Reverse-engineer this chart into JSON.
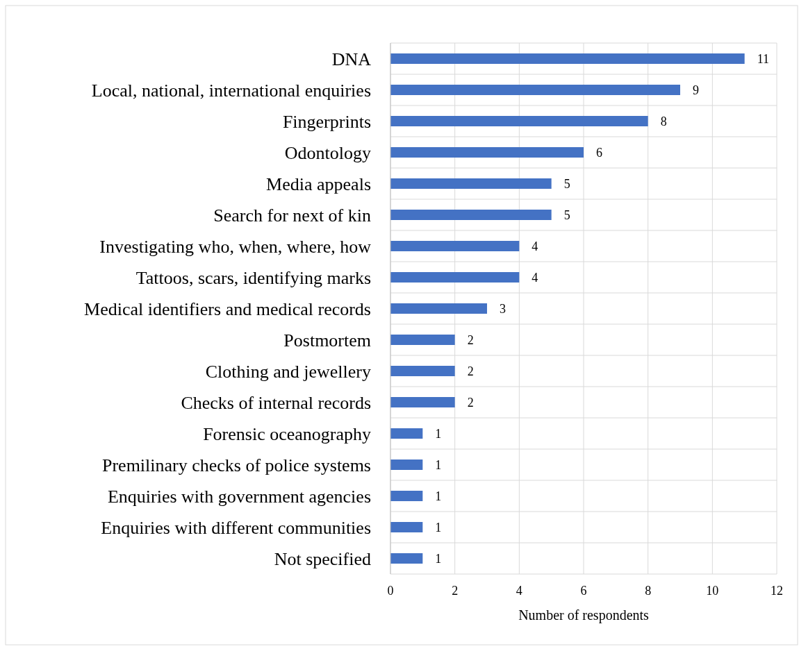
{
  "chart_data": {
    "type": "bar",
    "orientation": "horizontal",
    "xlabel": "Number of respondents",
    "categories": [
      "DNA",
      "Local, national, international enquiries",
      "Fingerprints",
      "Odontology",
      "Media appeals",
      "Search for next of kin",
      "Investigating who, when, where, how",
      "Tattoos, scars, identifying marks",
      "Medical identifiers and medical records",
      "Postmortem",
      "Clothing and jewellery",
      "Checks of internal records",
      "Forensic oceanography",
      "Premilinary checks of police systems",
      "Enquiries with government agencies",
      "Enquiries with different communities",
      "Not specified"
    ],
    "values": [
      11,
      9,
      8,
      6,
      5,
      5,
      4,
      4,
      3,
      2,
      2,
      2,
      1,
      1,
      1,
      1,
      1
    ],
    "color": "#4472c4",
    "xlim": [
      0,
      12
    ],
    "xticks": [
      0,
      2,
      4,
      6,
      8,
      10,
      12
    ],
    "grid": true,
    "data_labels": true
  }
}
